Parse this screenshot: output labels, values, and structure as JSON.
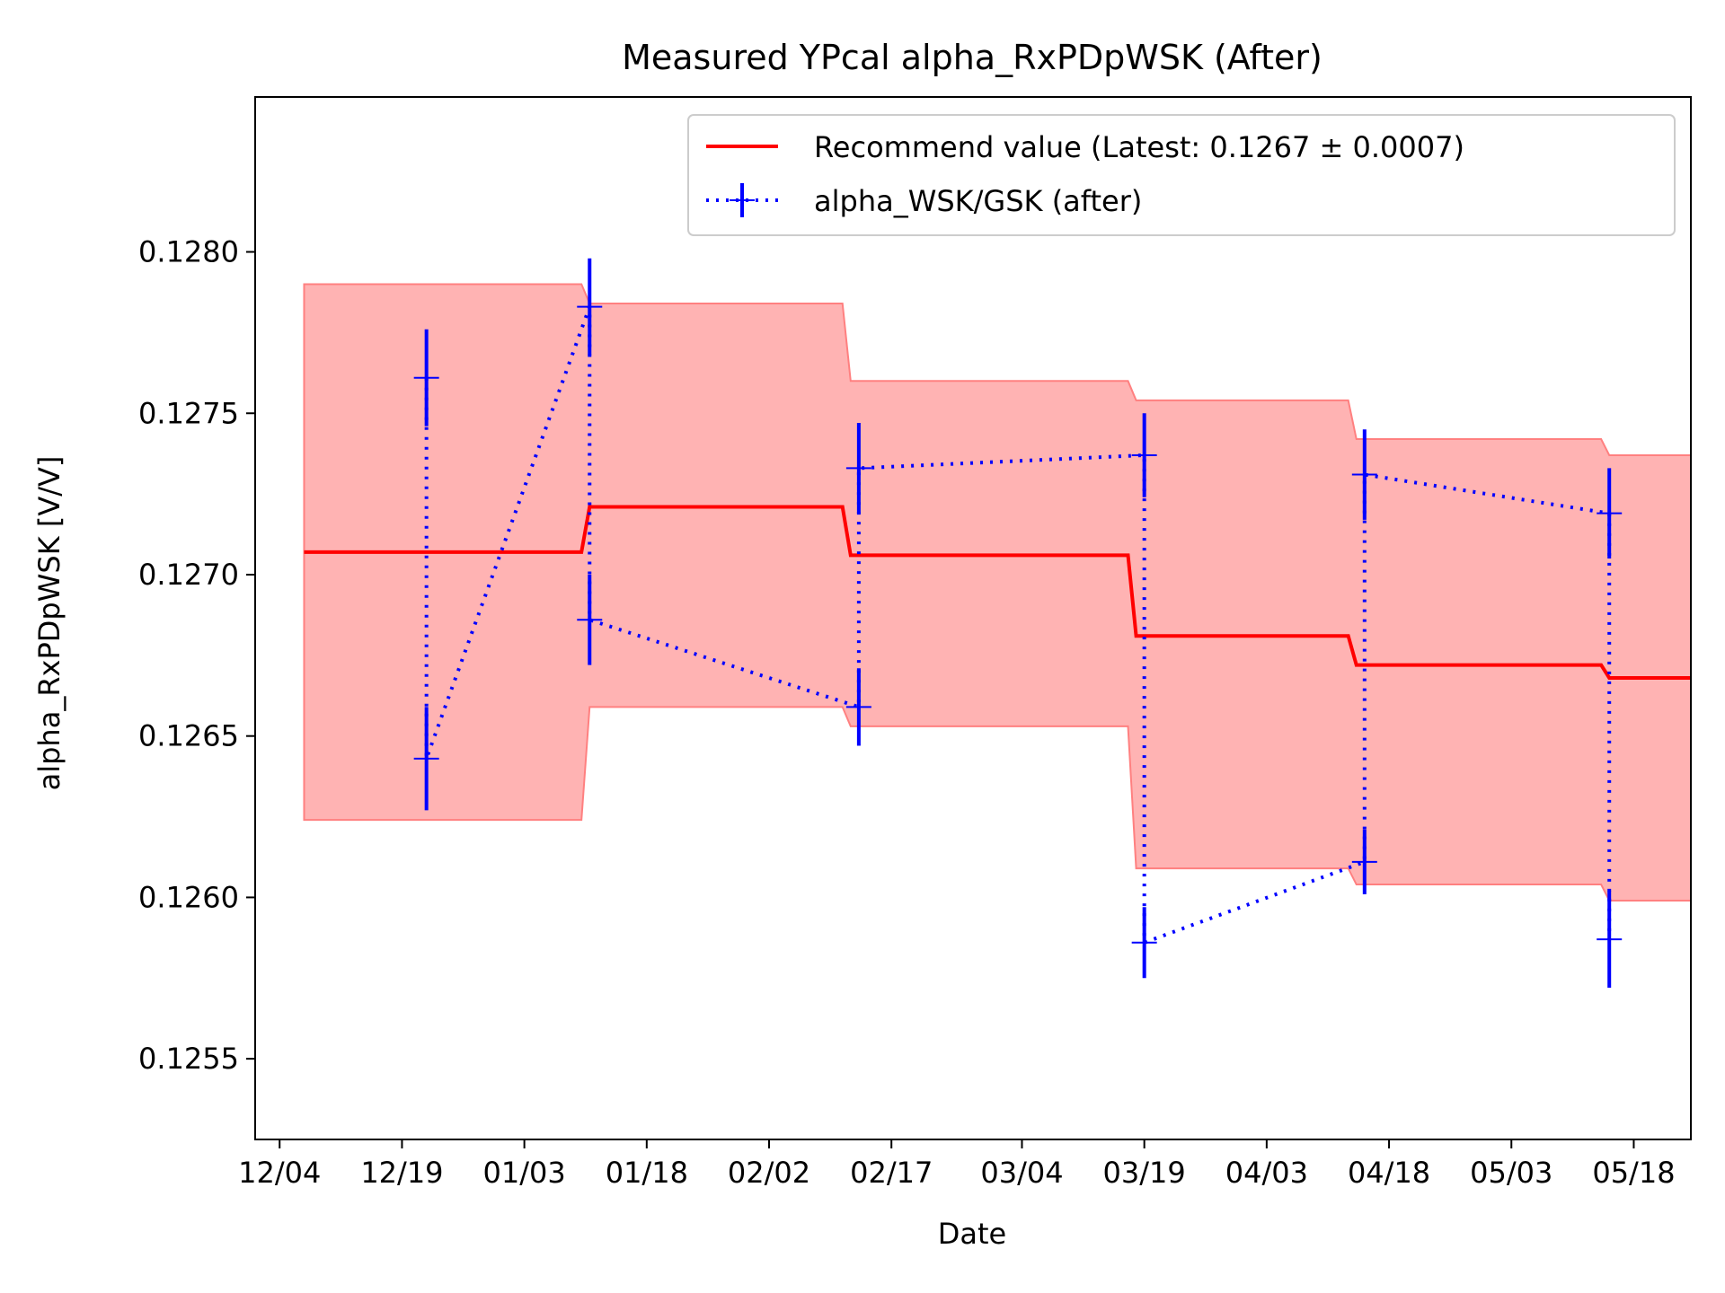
{
  "chart_data": {
    "type": "line",
    "title": "Measured YPcal alpha_RxPDpWSK (After)",
    "xlabel": "Date",
    "ylabel": "alpha_RxPDpWSK [V/V]",
    "x_ticks": [
      "12/04",
      "12/19",
      "01/03",
      "01/18",
      "02/02",
      "02/17",
      "03/04",
      "03/19",
      "04/03",
      "04/18",
      "05/03",
      "05/18"
    ],
    "y_ticks": [
      "0.1255",
      "0.1260",
      "0.1265",
      "0.1270",
      "0.1275",
      "0.1280"
    ],
    "xlim": [
      "12/01",
      "05/25"
    ],
    "ylim": [
      0.12525,
      0.12848
    ],
    "grid": false,
    "legend_position": "top-right",
    "series": [
      {
        "name": "Recommend value (Latest: 0.1267 ± 0.0007)",
        "style": "solid",
        "color": "#ff0000",
        "x": [
          "12/07",
          "01/10",
          "01/11",
          "02/11",
          "02/12",
          "03/17",
          "03/18",
          "04/13",
          "04/14",
          "05/14",
          "05/15",
          "05/25"
        ],
        "y": [
          0.12707,
          0.12707,
          0.12721,
          0.12721,
          0.12706,
          0.12706,
          0.12681,
          0.12681,
          0.12672,
          0.12672,
          0.12668,
          0.12668
        ]
      },
      {
        "name": "alpha_WSK/GSK (after)",
        "style": "dotted",
        "color": "#0000ff",
        "x": [
          "12/22",
          "12/22",
          "01/11",
          "01/11",
          "02/13",
          "02/13",
          "03/19",
          "03/19",
          "04/15",
          "04/15",
          "05/15",
          "05/15"
        ],
        "y": [
          0.12761,
          0.12643,
          0.12783,
          0.12686,
          0.12659,
          0.12733,
          0.12737,
          0.12586,
          0.12611,
          0.12731,
          0.12719,
          0.12587
        ],
        "yerr": [
          0.00015,
          0.00016,
          0.00015,
          0.00014,
          0.00012,
          0.00014,
          0.00013,
          0.00011,
          0.0001,
          0.00014,
          0.00014,
          0.00015
        ]
      }
    ],
    "band": {
      "x": [
        "12/07",
        "01/10",
        "01/11",
        "02/11",
        "02/12",
        "03/17",
        "03/18",
        "04/13",
        "04/14",
        "05/14",
        "05/15",
        "05/25"
      ],
      "upper": [
        0.1279,
        0.1279,
        0.12784,
        0.12784,
        0.1276,
        0.1276,
        0.12754,
        0.12754,
        0.12742,
        0.12742,
        0.12737,
        0.12737
      ],
      "lower": [
        0.12624,
        0.12624,
        0.12659,
        0.12659,
        0.12653,
        0.12653,
        0.12609,
        0.12609,
        0.12604,
        0.12604,
        0.12599,
        0.12599
      ],
      "color": "#ffb3b3"
    }
  }
}
